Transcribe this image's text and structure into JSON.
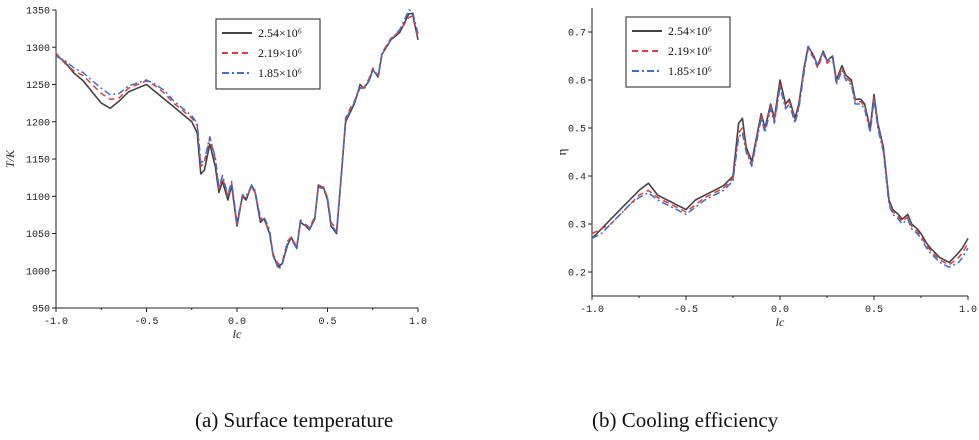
{
  "chart_data": [
    {
      "type": "line",
      "caption": "(a) Surface temperature",
      "xlabel": "lc",
      "ylabel": "T/K",
      "xlim": [
        -1.0,
        1.0
      ],
      "ylim": [
        950,
        1350
      ],
      "xticks": [
        "-1.0",
        "-0.5",
        "0.0",
        "0.5",
        "1.0"
      ],
      "yticks": [
        "950",
        "1000",
        "1050",
        "1100",
        "1150",
        "1200",
        "1250",
        "1300",
        "1350"
      ],
      "legend_position": "top-right",
      "series": [
        {
          "name": "2.54×10⁶",
          "style": "solid",
          "color": "#444444",
          "x": [
            -1.0,
            -0.95,
            -0.9,
            -0.85,
            -0.8,
            -0.75,
            -0.7,
            -0.65,
            -0.6,
            -0.55,
            -0.5,
            -0.45,
            -0.4,
            -0.35,
            -0.3,
            -0.25,
            -0.22,
            -0.2,
            -0.18,
            -0.15,
            -0.12,
            -0.1,
            -0.08,
            -0.05,
            -0.03,
            0.0,
            0.03,
            0.05,
            0.08,
            0.1,
            0.13,
            0.15,
            0.18,
            0.2,
            0.23,
            0.25,
            0.28,
            0.3,
            0.33,
            0.35,
            0.38,
            0.4,
            0.43,
            0.45,
            0.48,
            0.5,
            0.52,
            0.55,
            0.58,
            0.6,
            0.63,
            0.65,
            0.68,
            0.7,
            0.73,
            0.75,
            0.78,
            0.8,
            0.85,
            0.9,
            0.95,
            0.97,
            1.0
          ],
          "y": [
            1290,
            1280,
            1265,
            1255,
            1240,
            1225,
            1218,
            1228,
            1240,
            1245,
            1250,
            1240,
            1230,
            1220,
            1210,
            1200,
            1185,
            1130,
            1135,
            1170,
            1140,
            1105,
            1120,
            1095,
            1115,
            1060,
            1100,
            1095,
            1115,
            1105,
            1065,
            1070,
            1050,
            1020,
            1005,
            1010,
            1035,
            1045,
            1030,
            1065,
            1060,
            1055,
            1070,
            1115,
            1110,
            1095,
            1060,
            1050,
            1140,
            1200,
            1215,
            1225,
            1250,
            1245,
            1255,
            1270,
            1260,
            1290,
            1310,
            1320,
            1345,
            1345,
            1310
          ]
        },
        {
          "name": "2.19×10⁶",
          "style": "dashed",
          "color": "#e83a3a",
          "x": [
            -1.0,
            -0.95,
            -0.9,
            -0.85,
            -0.8,
            -0.75,
            -0.7,
            -0.65,
            -0.6,
            -0.55,
            -0.5,
            -0.45,
            -0.4,
            -0.35,
            -0.3,
            -0.25,
            -0.22,
            -0.2,
            -0.18,
            -0.15,
            -0.12,
            -0.1,
            -0.08,
            -0.05,
            -0.03,
            0.0,
            0.03,
            0.05,
            0.08,
            0.1,
            0.13,
            0.15,
            0.18,
            0.2,
            0.23,
            0.25,
            0.28,
            0.3,
            0.33,
            0.35,
            0.38,
            0.4,
            0.43,
            0.45,
            0.48,
            0.5,
            0.52,
            0.55,
            0.58,
            0.6,
            0.63,
            0.65,
            0.68,
            0.7,
            0.73,
            0.75,
            0.78,
            0.8,
            0.85,
            0.9,
            0.95,
            0.97,
            1.0
          ],
          "y": [
            1292,
            1278,
            1268,
            1262,
            1250,
            1238,
            1230,
            1232,
            1245,
            1250,
            1255,
            1248,
            1238,
            1225,
            1215,
            1205,
            1195,
            1140,
            1145,
            1178,
            1150,
            1110,
            1125,
            1100,
            1118,
            1062,
            1100,
            1098,
            1112,
            1105,
            1068,
            1070,
            1052,
            1022,
            1008,
            1012,
            1040,
            1045,
            1032,
            1068,
            1062,
            1058,
            1072,
            1115,
            1112,
            1098,
            1065,
            1055,
            1140,
            1205,
            1220,
            1228,
            1248,
            1245,
            1258,
            1272,
            1262,
            1292,
            1312,
            1322,
            1340,
            1342,
            1312
          ]
        },
        {
          "name": "1.85×10⁶",
          "style": "dashdot",
          "color": "#3a6fd8",
          "x": [
            -1.0,
            -0.95,
            -0.9,
            -0.85,
            -0.8,
            -0.75,
            -0.7,
            -0.65,
            -0.6,
            -0.55,
            -0.5,
            -0.45,
            -0.4,
            -0.35,
            -0.3,
            -0.25,
            -0.22,
            -0.2,
            -0.18,
            -0.15,
            -0.12,
            -0.1,
            -0.08,
            -0.05,
            -0.03,
            0.0,
            0.03,
            0.05,
            0.08,
            0.1,
            0.13,
            0.15,
            0.18,
            0.2,
            0.23,
            0.25,
            0.28,
            0.3,
            0.33,
            0.35,
            0.38,
            0.4,
            0.43,
            0.45,
            0.48,
            0.5,
            0.52,
            0.55,
            0.58,
            0.6,
            0.63,
            0.65,
            0.68,
            0.7,
            0.73,
            0.75,
            0.78,
            0.8,
            0.85,
            0.9,
            0.95,
            0.97,
            1.0
          ],
          "y": [
            1288,
            1282,
            1272,
            1266,
            1255,
            1245,
            1236,
            1238,
            1248,
            1252,
            1256,
            1250,
            1242,
            1228,
            1218,
            1208,
            1198,
            1145,
            1148,
            1180,
            1152,
            1112,
            1128,
            1102,
            1120,
            1065,
            1102,
            1100,
            1114,
            1108,
            1070,
            1072,
            1055,
            1020,
            1002,
            1008,
            1038,
            1042,
            1030,
            1066,
            1060,
            1056,
            1070,
            1112,
            1110,
            1098,
            1062,
            1052,
            1138,
            1202,
            1218,
            1226,
            1246,
            1243,
            1255,
            1270,
            1260,
            1290,
            1310,
            1324,
            1350,
            1348,
            1318
          ]
        }
      ]
    },
    {
      "type": "line",
      "caption": "(b) Cooling efficiency",
      "xlabel": "lc",
      "ylabel": "η",
      "xlim": [
        -1.0,
        1.0
      ],
      "ylim": [
        0.15,
        0.75
      ],
      "xticks": [
        "-1.0",
        "-0.5",
        "0.0",
        "0.5",
        "1.0"
      ],
      "yticks": [
        "0.2",
        "0.3",
        "0.4",
        "0.5",
        "0.6",
        "0.7"
      ],
      "legend_position": "top-left",
      "series": [
        {
          "name": "2.54×10⁶",
          "style": "solid",
          "color": "#444444",
          "x": [
            -1.0,
            -0.95,
            -0.9,
            -0.85,
            -0.8,
            -0.75,
            -0.7,
            -0.65,
            -0.6,
            -0.55,
            -0.5,
            -0.45,
            -0.4,
            -0.35,
            -0.3,
            -0.25,
            -0.22,
            -0.2,
            -0.18,
            -0.15,
            -0.12,
            -0.1,
            -0.08,
            -0.05,
            -0.03,
            0.0,
            0.03,
            0.05,
            0.08,
            0.1,
            0.13,
            0.15,
            0.18,
            0.2,
            0.23,
            0.25,
            0.28,
            0.3,
            0.33,
            0.35,
            0.38,
            0.4,
            0.43,
            0.45,
            0.48,
            0.5,
            0.52,
            0.55,
            0.58,
            0.6,
            0.63,
            0.65,
            0.68,
            0.7,
            0.73,
            0.75,
            0.78,
            0.8,
            0.85,
            0.9,
            0.95,
            0.97,
            1.0
          ],
          "y": [
            0.27,
            0.29,
            0.31,
            0.33,
            0.35,
            0.37,
            0.385,
            0.36,
            0.35,
            0.34,
            0.33,
            0.35,
            0.36,
            0.37,
            0.38,
            0.4,
            0.51,
            0.52,
            0.46,
            0.43,
            0.49,
            0.53,
            0.5,
            0.55,
            0.52,
            0.6,
            0.55,
            0.56,
            0.52,
            0.55,
            0.63,
            0.67,
            0.65,
            0.63,
            0.66,
            0.64,
            0.65,
            0.6,
            0.63,
            0.61,
            0.6,
            0.56,
            0.56,
            0.55,
            0.5,
            0.57,
            0.51,
            0.46,
            0.35,
            0.33,
            0.32,
            0.31,
            0.32,
            0.3,
            0.29,
            0.28,
            0.26,
            0.25,
            0.23,
            0.22,
            0.24,
            0.25,
            0.27
          ]
        },
        {
          "name": "2.19×10⁶",
          "style": "dashed",
          "color": "#e83a3a",
          "x": [
            -1.0,
            -0.95,
            -0.9,
            -0.85,
            -0.8,
            -0.75,
            -0.7,
            -0.65,
            -0.6,
            -0.55,
            -0.5,
            -0.45,
            -0.4,
            -0.35,
            -0.3,
            -0.25,
            -0.22,
            -0.2,
            -0.18,
            -0.15,
            -0.12,
            -0.1,
            -0.08,
            -0.05,
            -0.03,
            0.0,
            0.03,
            0.05,
            0.08,
            0.1,
            0.13,
            0.15,
            0.18,
            0.2,
            0.23,
            0.25,
            0.28,
            0.3,
            0.33,
            0.35,
            0.38,
            0.4,
            0.43,
            0.45,
            0.48,
            0.5,
            0.52,
            0.55,
            0.58,
            0.6,
            0.63,
            0.65,
            0.68,
            0.7,
            0.73,
            0.75,
            0.78,
            0.8,
            0.85,
            0.9,
            0.95,
            0.97,
            1.0
          ],
          "y": [
            0.28,
            0.29,
            0.3,
            0.32,
            0.34,
            0.36,
            0.37,
            0.355,
            0.345,
            0.335,
            0.325,
            0.34,
            0.355,
            0.365,
            0.375,
            0.395,
            0.49,
            0.5,
            0.455,
            0.425,
            0.485,
            0.525,
            0.495,
            0.545,
            0.515,
            0.59,
            0.545,
            0.555,
            0.515,
            0.545,
            0.625,
            0.665,
            0.645,
            0.625,
            0.655,
            0.635,
            0.645,
            0.595,
            0.625,
            0.605,
            0.595,
            0.555,
            0.555,
            0.545,
            0.495,
            0.565,
            0.505,
            0.455,
            0.345,
            0.325,
            0.315,
            0.305,
            0.315,
            0.295,
            0.285,
            0.275,
            0.255,
            0.245,
            0.225,
            0.215,
            0.23,
            0.24,
            0.26
          ]
        },
        {
          "name": "1.85×10⁶",
          "style": "dashdot",
          "color": "#3a6fd8",
          "x": [
            -1.0,
            -0.95,
            -0.9,
            -0.85,
            -0.8,
            -0.75,
            -0.7,
            -0.65,
            -0.6,
            -0.55,
            -0.5,
            -0.45,
            -0.4,
            -0.35,
            -0.3,
            -0.25,
            -0.22,
            -0.2,
            -0.18,
            -0.15,
            -0.12,
            -0.1,
            -0.08,
            -0.05,
            -0.03,
            0.0,
            0.03,
            0.05,
            0.08,
            0.1,
            0.13,
            0.15,
            0.18,
            0.2,
            0.23,
            0.25,
            0.28,
            0.3,
            0.33,
            0.35,
            0.38,
            0.4,
            0.43,
            0.45,
            0.48,
            0.5,
            0.52,
            0.55,
            0.58,
            0.6,
            0.63,
            0.65,
            0.68,
            0.7,
            0.73,
            0.75,
            0.78,
            0.8,
            0.85,
            0.9,
            0.95,
            0.97,
            1.0
          ],
          "y": [
            0.27,
            0.28,
            0.3,
            0.32,
            0.34,
            0.355,
            0.365,
            0.35,
            0.34,
            0.33,
            0.32,
            0.335,
            0.35,
            0.36,
            0.37,
            0.39,
            0.48,
            0.49,
            0.45,
            0.42,
            0.48,
            0.52,
            0.49,
            0.54,
            0.51,
            0.585,
            0.54,
            0.55,
            0.51,
            0.54,
            0.62,
            0.67,
            0.65,
            0.63,
            0.66,
            0.64,
            0.65,
            0.59,
            0.62,
            0.6,
            0.59,
            0.55,
            0.55,
            0.54,
            0.49,
            0.56,
            0.5,
            0.45,
            0.34,
            0.32,
            0.31,
            0.3,
            0.31,
            0.29,
            0.28,
            0.27,
            0.25,
            0.24,
            0.22,
            0.21,
            0.22,
            0.23,
            0.25
          ]
        }
      ]
    }
  ]
}
